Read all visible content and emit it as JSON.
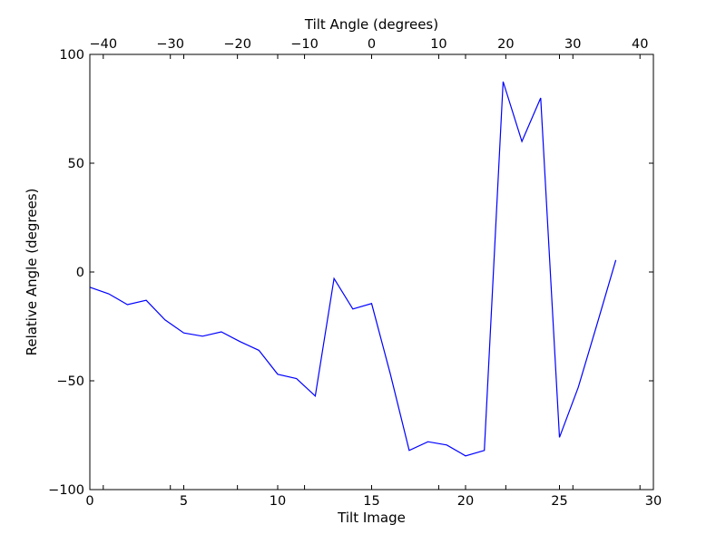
{
  "chart_data": {
    "type": "line",
    "title": "",
    "xlabel": "Tilt Image",
    "ylabel": "Relative Angle (degrees)",
    "x2label": "Tilt Angle (degrees)",
    "xlim": [
      0,
      30
    ],
    "ylim": [
      -100,
      100
    ],
    "x2lim": [
      -42,
      42
    ],
    "x_ticks": [
      0,
      5,
      10,
      15,
      20,
      25,
      30
    ],
    "x_tick_labels": [
      "0",
      "5",
      "10",
      "15",
      "20",
      "25",
      "30"
    ],
    "y_ticks": [
      -100,
      -50,
      0,
      50,
      100
    ],
    "y_tick_labels": [
      "−100",
      "−50",
      "0",
      "50",
      "100"
    ],
    "x2_ticks": [
      -40,
      -30,
      -20,
      -10,
      0,
      10,
      20,
      30,
      40
    ],
    "x2_tick_labels": [
      "−40",
      "−30",
      "−20",
      "−10",
      "0",
      "10",
      "20",
      "30",
      "40"
    ],
    "grid": false,
    "line_color": "#0000ff",
    "series": [
      {
        "x": [
          0,
          1,
          2,
          3,
          4,
          5,
          6,
          7,
          8,
          9,
          10,
          11,
          12,
          13,
          14,
          15,
          16,
          17,
          18,
          19,
          20,
          21,
          22,
          23,
          24,
          25,
          26,
          27,
          28
        ],
        "values": [
          -7,
          -10,
          -15,
          -13,
          -22,
          -28,
          -29.5,
          -27.5,
          -32,
          -36,
          -47,
          -49,
          -57,
          -3,
          -17,
          -14.5,
          -47,
          -82,
          -78,
          -79.5,
          -84.5,
          -82,
          87.5,
          60,
          80,
          -76,
          -53,
          -24,
          5.5
        ]
      }
    ]
  }
}
